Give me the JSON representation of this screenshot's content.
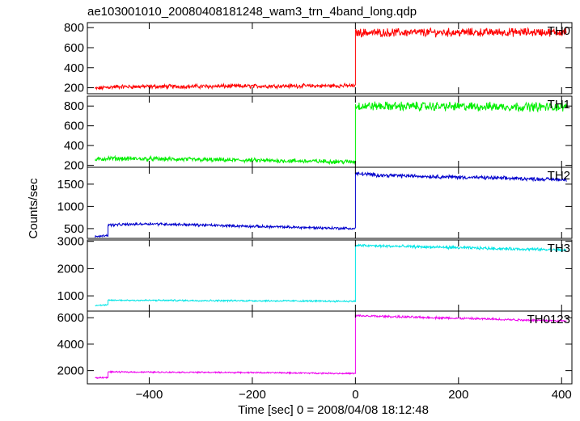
{
  "chart_data": {
    "type": "line",
    "title": "ae103001010_20080408181248_wam3_trn_4band_long.qdp",
    "xlabel": "Time [sec] 0 = 2008/04/08 18:12:48",
    "ylabel": "Counts/sec",
    "xlim": [
      -520,
      420
    ],
    "xticks": [
      -400,
      -200,
      0,
      200,
      400
    ],
    "xtick_labels": [
      "−400",
      "−200",
      "0",
      "200",
      "400"
    ],
    "panels": [
      {
        "name": "TH0",
        "color": "#ff0000",
        "ylim": [
          140,
          850
        ],
        "yticks": [
          200,
          400,
          600,
          800
        ],
        "segments": [
          {
            "x": [
              -505,
              -480,
              -460,
              0
            ],
            "y": [
              190,
              205,
              210,
              220
            ],
            "noise": 28
          },
          {
            "x": [
              0,
              410
            ],
            "y": [
              750,
              755
            ],
            "noise": 55
          }
        ]
      },
      {
        "name": "TH1",
        "color": "#00ee00",
        "ylim": [
          180,
          900
        ],
        "yticks": [
          200,
          400,
          600,
          800
        ],
        "segments": [
          {
            "x": [
              -505,
              -480,
              0
            ],
            "y": [
              255,
              270,
              235
            ],
            "noise": 30
          },
          {
            "x": [
              0,
              410
            ],
            "y": [
              800,
              790
            ],
            "noise": 60
          }
        ]
      },
      {
        "name": "TH2",
        "color": "#0000cc",
        "ylim": [
          280,
          1880
        ],
        "yticks": [
          500,
          1000,
          1500
        ],
        "segments": [
          {
            "x": [
              -505,
              -480
            ],
            "y": [
              320,
              350
            ],
            "noise": 30
          },
          {
            "x": [
              -480,
              -400,
              -200,
              0
            ],
            "y": [
              580,
              610,
              550,
              500
            ],
            "noise": 40
          },
          {
            "x": [
              0,
              50,
              410
            ],
            "y": [
              1740,
              1700,
              1600
            ],
            "noise": 55
          }
        ]
      },
      {
        "name": "TH3",
        "color": "#00e5e5",
        "ylim": [
          440,
          3050
        ],
        "yticks": [
          1000,
          2000,
          3000
        ],
        "segments": [
          {
            "x": [
              -505,
              -480
            ],
            "y": [
              650,
              660
            ],
            "noise": 30
          },
          {
            "x": [
              -480,
              -200,
              0
            ],
            "y": [
              840,
              820,
              800
            ],
            "noise": 40
          },
          {
            "x": [
              0,
              410
            ],
            "y": [
              2850,
              2680
            ],
            "noise": 70
          }
        ]
      },
      {
        "name": "TH0123",
        "color": "#ee00ee",
        "ylim": [
          1000,
          6500
        ],
        "yticks": [
          2000,
          4000,
          6000
        ],
        "segments": [
          {
            "x": [
              -505,
              -480
            ],
            "y": [
              1450,
              1480
            ],
            "noise": 60
          },
          {
            "x": [
              -480,
              -200,
              0
            ],
            "y": [
              1900,
              1850,
              1780
            ],
            "noise": 70
          },
          {
            "x": [
              0,
              410
            ],
            "y": [
              6150,
              5750
            ],
            "noise": 110
          }
        ]
      }
    ]
  }
}
